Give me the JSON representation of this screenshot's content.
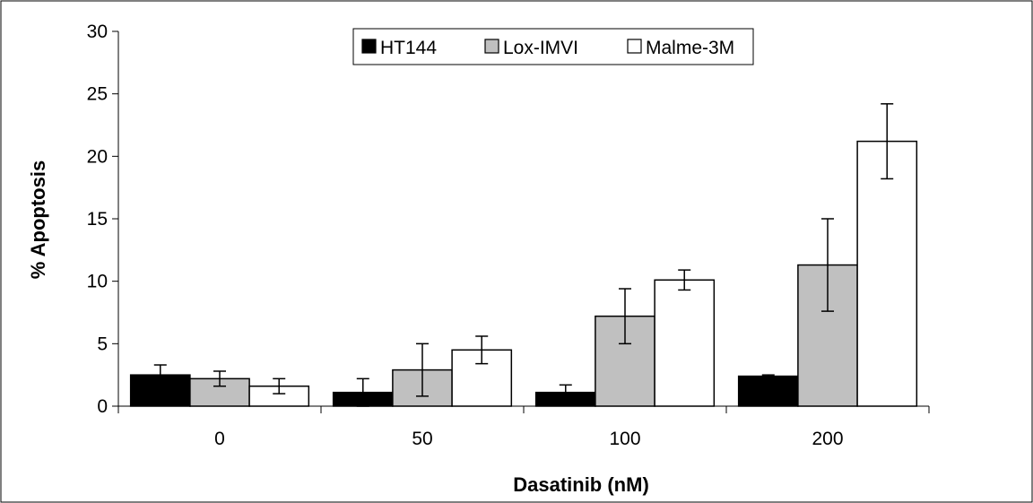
{
  "chart_data": {
    "type": "bar",
    "title": "",
    "xlabel": "Dasatinib (nM)",
    "ylabel": "% Apoptosis",
    "categories": [
      "0",
      "50",
      "100",
      "200"
    ],
    "ylim": [
      0,
      30
    ],
    "yticks": [
      0,
      5,
      10,
      15,
      20,
      25,
      30
    ],
    "grid": false,
    "legend_position": "top-center",
    "series": [
      {
        "name": "HT144",
        "color": "#000000",
        "values": [
          2.5,
          1.1,
          1.1,
          2.4
        ],
        "errors": [
          0.8,
          1.1,
          0.6,
          0.1
        ]
      },
      {
        "name": "Lox-IMVI",
        "color": "#c0c0c0",
        "values": [
          2.2,
          2.9,
          7.2,
          11.3
        ],
        "errors": [
          0.6,
          2.1,
          2.2,
          3.7
        ]
      },
      {
        "name": "Malme-3M",
        "color": "#ffffff",
        "values": [
          1.6,
          4.5,
          10.1,
          21.2
        ],
        "errors": [
          0.6,
          1.1,
          0.8,
          3.0
        ]
      }
    ]
  }
}
